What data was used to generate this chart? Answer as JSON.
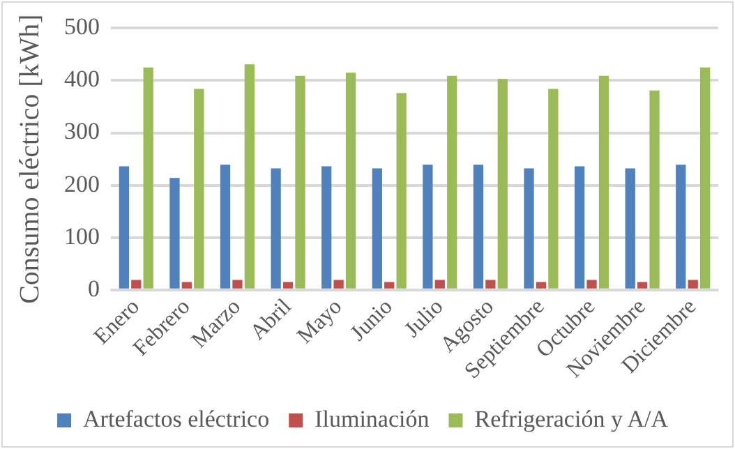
{
  "chart_data": {
    "type": "bar",
    "ylabel": "Consumo eléctrico [kWh]",
    "categories": [
      "Enero",
      "Febrero",
      "Marzo",
      "Abril",
      "Mayo",
      "Junio",
      "Julio",
      "Agosto",
      "Septiembre",
      "Octubre",
      "Noviembre",
      "Diciembre"
    ],
    "series": [
      {
        "name": "Artefactos eléctrico",
        "color": "#4f81bd",
        "values": [
          236,
          214,
          239,
          232,
          236,
          232,
          239,
          239,
          232,
          236,
          232,
          239
        ]
      },
      {
        "name": "Iluminación",
        "color": "#c0504d",
        "values": [
          19,
          15,
          19,
          15,
          19,
          15,
          19,
          19,
          15,
          19,
          15,
          19
        ]
      },
      {
        "name": "Refrigeración y A/A",
        "color": "#9bbb59",
        "values": [
          425,
          384,
          431,
          409,
          415,
          376,
          409,
          403,
          384,
          409,
          381,
          425
        ]
      }
    ],
    "ylim": [
      0,
      500
    ],
    "yticks": [
      0,
      100,
      200,
      300,
      400,
      500
    ],
    "grid": "y",
    "legend": "bottom"
  }
}
